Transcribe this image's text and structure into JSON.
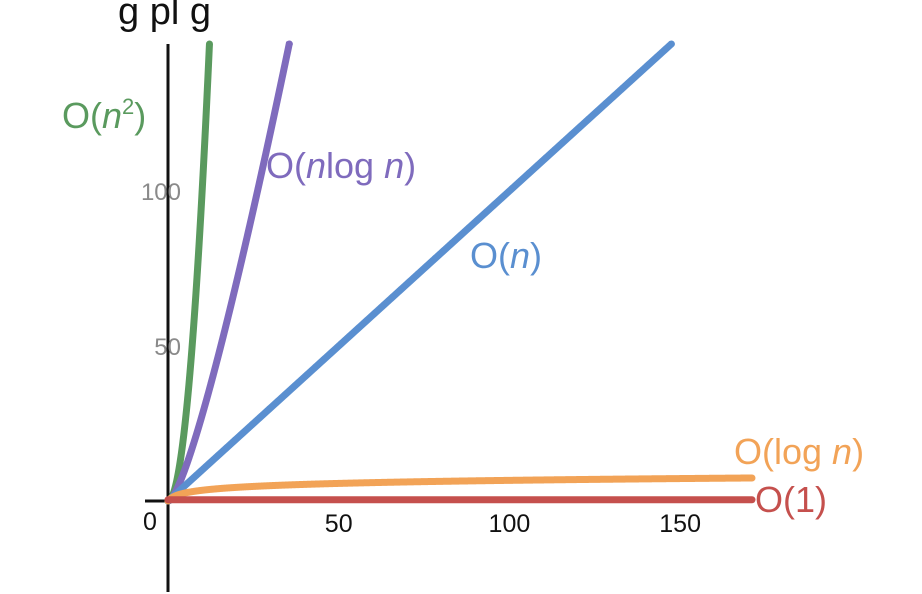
{
  "title_fragment": "g                      pl    g",
  "chart_data": {
    "type": "line",
    "x_range": [
      0,
      175
    ],
    "y_range": [
      0,
      150
    ],
    "x_ticks": [
      50,
      100,
      150
    ],
    "y_ticks": [
      50,
      100
    ],
    "origin_label": "0",
    "grid": false,
    "series": [
      {
        "name": "O(n^2)",
        "label_parts": [
          "O(",
          "n",
          "2",
          ")"
        ],
        "color": "#5a9a5e",
        "kind": "quadratic"
      },
      {
        "name": "O(nlog n)",
        "label_parts": [
          "O(",
          "n",
          "log ",
          "n",
          ")"
        ],
        "color": "#7f6bbd",
        "kind": "nlogn"
      },
      {
        "name": "O(n)",
        "label_parts": [
          "O(",
          "n",
          ")"
        ],
        "color": "#5a8fd0",
        "kind": "linear"
      },
      {
        "name": "O(log n)",
        "label_parts": [
          "O(log ",
          "n",
          ")"
        ],
        "color": "#f2a357",
        "kind": "log"
      },
      {
        "name": "O(1)",
        "label_parts": [
          "O(1)"
        ],
        "color": "#c5504d",
        "kind": "constant"
      }
    ]
  }
}
